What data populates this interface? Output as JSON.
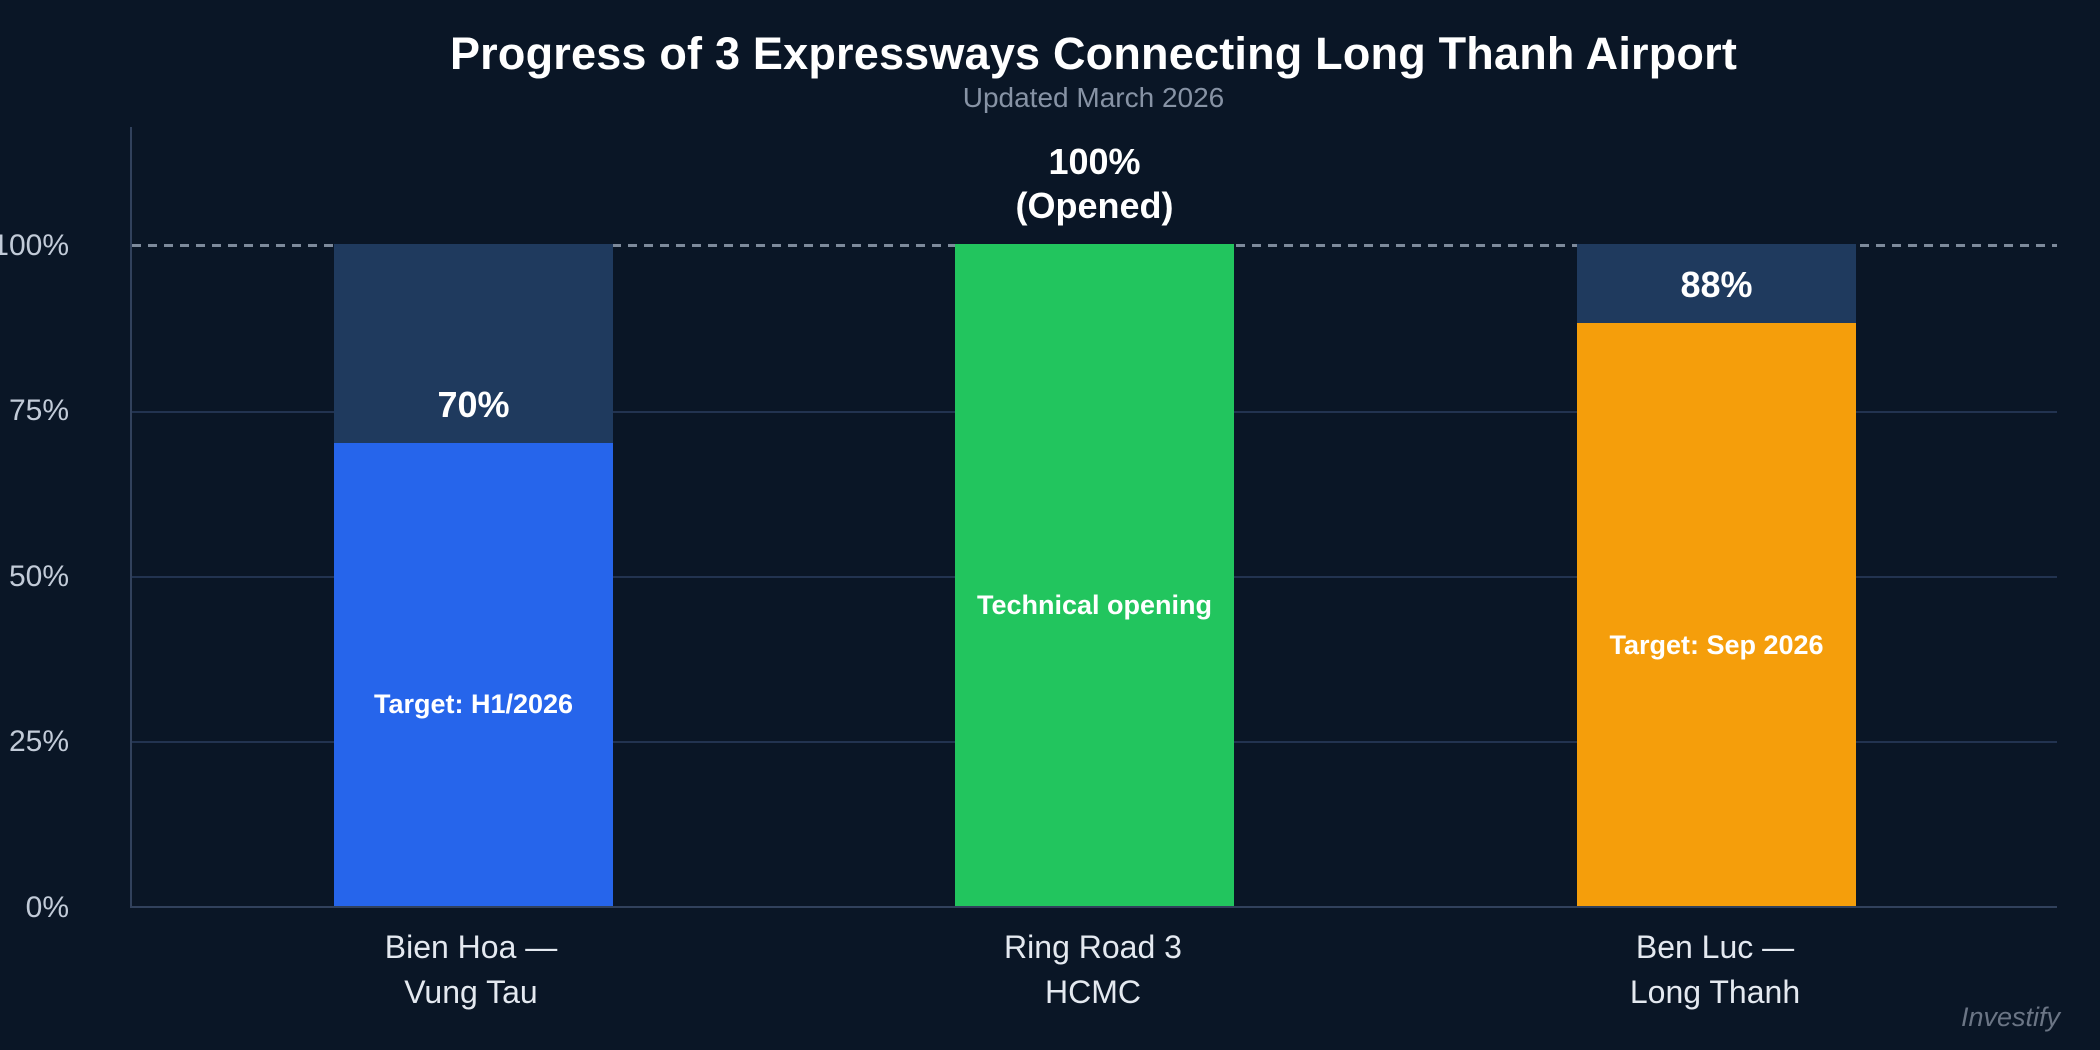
{
  "header": {
    "title": "Progress of 3 Expressways Connecting Long Thanh Airport",
    "subtitle": "Updated March 2026"
  },
  "watermark": "Investify",
  "axis": {
    "y_ticks": [
      "0%",
      "25%",
      "50%",
      "75%",
      "100%"
    ]
  },
  "chart_data": {
    "type": "bar",
    "title": "Progress of 3 Expressways Connecting Long Thanh Airport",
    "subtitle": "Updated March 2026",
    "categories": [
      "Bien Hoa — Vung Tau",
      "Ring Road 3 HCMC",
      "Ben Luc — Long Thanh"
    ],
    "values": [
      70,
      100,
      88
    ],
    "ylabel": "",
    "xlabel": "",
    "ylim": [
      0,
      100
    ],
    "y_tick_labels": [
      "0%",
      "25%",
      "50%",
      "75%",
      "100%"
    ],
    "grid": "horizontal",
    "legend": "none",
    "target_line": {
      "value": 100,
      "style": "dashed"
    },
    "colors": [
      "#2665eb",
      "#22c55e",
      "#f59e0b"
    ],
    "track_color": "#1f3a5e",
    "background_color": "#0a1626",
    "bars": [
      {
        "category_line1": "Bien Hoa —",
        "category_line2": "Vung Tau",
        "value": 70,
        "value_lines": [
          "70%"
        ],
        "note": "Target: H1/2026",
        "color": "#2665eb"
      },
      {
        "category_line1": "Ring Road 3",
        "category_line2": "HCMC",
        "value": 100,
        "value_lines": [
          "100%",
          "(Opened)"
        ],
        "note": "Technical opening",
        "color": "#22c55e"
      },
      {
        "category_line1": "Ben Luc —",
        "category_line2": "Long Thanh",
        "value": 88,
        "value_lines": [
          "88%"
        ],
        "note": "Target: Sep 2026",
        "color": "#f59e0b"
      }
    ]
  }
}
